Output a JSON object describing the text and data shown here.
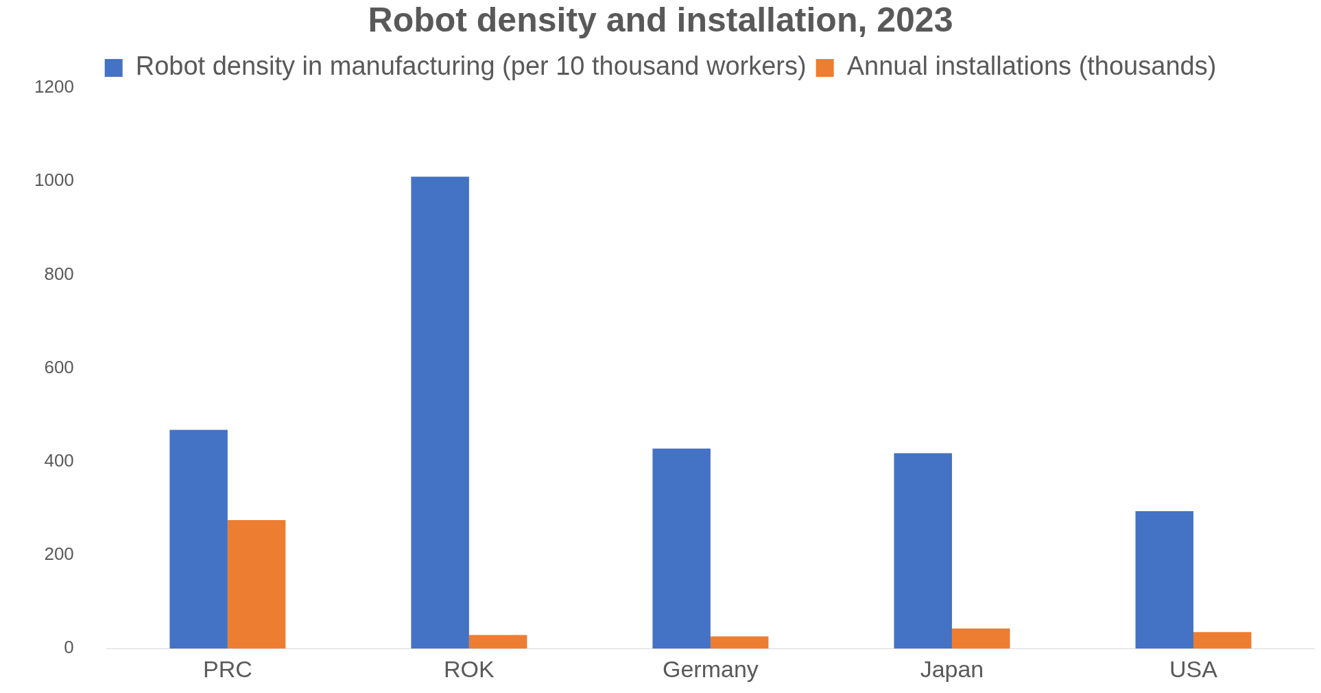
{
  "chart_data": {
    "type": "bar",
    "title": "Robot density and installation, 2023",
    "categories": [
      "PRC",
      "ROK",
      "Germany",
      "Japan",
      "USA"
    ],
    "series": [
      {
        "name": "Robot density in manufacturing (per 10 thousand workers)",
        "color": "#4472c4",
        "values": [
          468,
          1010,
          428,
          418,
          294
        ]
      },
      {
        "name": "Annual installations (thousands)",
        "color": "#ed7d31",
        "values": [
          275,
          29,
          26,
          43,
          35
        ]
      }
    ],
    "ylim": [
      0,
      1200
    ],
    "yticks": [
      0,
      200,
      400,
      600,
      800,
      1000,
      1200
    ],
    "grid": false,
    "legend": "top"
  }
}
